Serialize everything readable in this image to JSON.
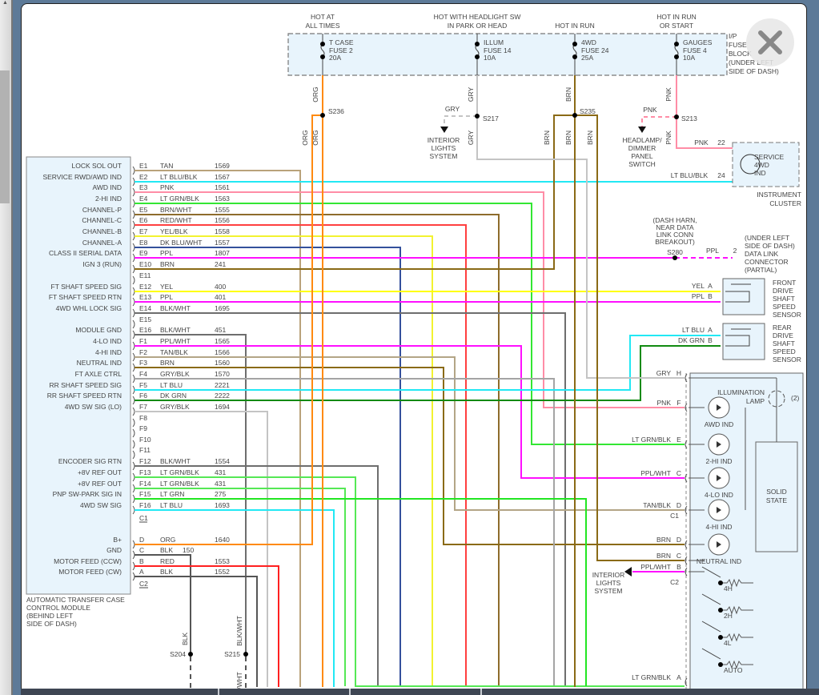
{
  "fuse_block": {
    "label": [
      "I/P",
      "FUSE",
      "BLOCK",
      "(UNDER LEFT",
      "SIDE OF DASH)"
    ],
    "fuses": [
      {
        "header": [
          "HOT AT",
          "ALL TIMES"
        ],
        "name": "T CASE",
        "fuse": "FUSE 2",
        "amps": "20A"
      },
      {
        "header": [
          "HOT WITH HEADLIGHT SW",
          "IN PARK OR HEAD"
        ],
        "name": "ILLUM",
        "fuse": "FUSE 14",
        "amps": "10A"
      },
      {
        "header": [
          "",
          "HOT IN RUN"
        ],
        "name": "4WD",
        "fuse": "FUSE 24",
        "amps": "25A"
      },
      {
        "header": [
          "HOT IN RUN",
          "OR START"
        ],
        "name": "GAUGES",
        "fuse": "FUSE 4",
        "amps": "10A"
      }
    ]
  },
  "splices": [
    "S236",
    "S217",
    "S235",
    "S213",
    "S280",
    "S204",
    "S215"
  ],
  "module": {
    "title": [
      "AUTOMATIC TRANSFER CASE",
      "CONTROL MODULE",
      "(BEHIND LEFT",
      "SIDE OF DASH)"
    ],
    "connector_labels": [
      "C1",
      "C2"
    ],
    "pins": [
      {
        "pin": "E1",
        "func": "LOCK SOL OUT",
        "color": "TAN",
        "circuit": "1569",
        "hex": "#b9a27a"
      },
      {
        "pin": "E2",
        "func": "SERVICE RWD/AWD IND",
        "color": "LT BLU/BLK",
        "circuit": "1567",
        "hex": "#22e8f4"
      },
      {
        "pin": "E3",
        "func": "AWD IND",
        "color": "PNK",
        "circuit": "1561",
        "hex": "#ff8da6"
      },
      {
        "pin": "E4",
        "func": "2-HI IND",
        "color": "LT GRN/BLK",
        "circuit": "1563",
        "hex": "#33e633"
      },
      {
        "pin": "E5",
        "func": "CHANNEL-P",
        "color": "BRN/WHT",
        "circuit": "1555",
        "hex": "#8e6c2c"
      },
      {
        "pin": "E6",
        "func": "CHANNEL-C",
        "color": "RED/WHT",
        "circuit": "1556",
        "hex": "#ff4040"
      },
      {
        "pin": "E7",
        "func": "CHANNEL-B",
        "color": "YEL/BLK",
        "circuit": "1558",
        "hex": "#f2f230"
      },
      {
        "pin": "E8",
        "func": "CHANNEL-A",
        "color": "DK BLU/WHT",
        "circuit": "1557",
        "hex": "#34509c"
      },
      {
        "pin": "E9",
        "func": "CLASS II SERIAL DATA",
        "color": "PPL",
        "circuit": "1807",
        "hex": "#ff10ff"
      },
      {
        "pin": "E10",
        "func": "IGN 3 (RUN)",
        "color": "BRN",
        "circuit": "241",
        "hex": "#8a6a16"
      },
      {
        "pin": "E11",
        "func": "",
        "color": "",
        "circuit": "",
        "hex": ""
      },
      {
        "pin": "E12",
        "func": "FT SHAFT SPEED SIG",
        "color": "YEL",
        "circuit": "400",
        "hex": "#ffff00"
      },
      {
        "pin": "E13",
        "func": "FT SHAFT SPEED RTN",
        "color": "PPL",
        "circuit": "401",
        "hex": "#ff10ff"
      },
      {
        "pin": "E14",
        "func": "4WD WHL LOCK SIG",
        "color": "BLK/WHT",
        "circuit": "1695",
        "hex": "#6e6e6e"
      },
      {
        "pin": "E15",
        "func": "",
        "color": "",
        "circuit": "",
        "hex": ""
      },
      {
        "pin": "E16",
        "func": "MODULE GND",
        "color": "BLK/WHT",
        "circuit": "451",
        "hex": "#6e6e6e"
      },
      {
        "pin": "F1",
        "func": "4-LO IND",
        "color": "PPL/WHT",
        "circuit": "1565",
        "hex": "#ff10ff"
      },
      {
        "pin": "F2",
        "func": "4-HI IND",
        "color": "TAN/BLK",
        "circuit": "1566",
        "hex": "#b3a586"
      },
      {
        "pin": "F3",
        "func": "NEUTRAL IND",
        "color": "BRN",
        "circuit": "1560",
        "hex": "#8a6a16"
      },
      {
        "pin": "F4",
        "func": "FT AXLE CTRL",
        "color": "GRY/BLK",
        "circuit": "1570",
        "hex": "#a4a4a4"
      },
      {
        "pin": "F5",
        "func": "RR SHAFT SPEED SIG",
        "color": "LT BLU",
        "circuit": "2221",
        "hex": "#22e8f4"
      },
      {
        "pin": "F6",
        "func": "RR SHAFT SPEED RTN",
        "color": "DK GRN",
        "circuit": "2222",
        "hex": "#118a11"
      },
      {
        "pin": "F7",
        "func": "4WD SW SIG (LO)",
        "color": "GRY/BLK",
        "circuit": "1694",
        "hex": "#c4c4c4"
      },
      {
        "pin": "F8",
        "func": "",
        "color": "",
        "circuit": "",
        "hex": ""
      },
      {
        "pin": "F9",
        "func": "",
        "color": "",
        "circuit": "",
        "hex": ""
      },
      {
        "pin": "F10",
        "func": "",
        "color": "",
        "circuit": "",
        "hex": ""
      },
      {
        "pin": "F11",
        "func": "",
        "color": "",
        "circuit": "",
        "hex": ""
      },
      {
        "pin": "F12",
        "func": "ENCODER SIG RTN",
        "color": "BLK/WHT",
        "circuit": "1554",
        "hex": "#6e6e6e"
      },
      {
        "pin": "F13",
        "func": "+8V REF OUT",
        "color": "LT GRN/BLK",
        "circuit": "431",
        "hex": "#55e855"
      },
      {
        "pin": "F14",
        "func": "+8V REF OUT",
        "color": "LT GRN/BLK",
        "circuit": "431",
        "hex": "#55e855"
      },
      {
        "pin": "F15",
        "func": "PNP SW-PARK SIG IN",
        "color": "LT GRN",
        "circuit": "275",
        "hex": "#22e622"
      },
      {
        "pin": "F16",
        "func": "4WD SW SIG",
        "color": "LT BLU",
        "circuit": "1693",
        "hex": "#22e8f4"
      },
      {
        "pin": "D",
        "func": "B+",
        "color": "ORG",
        "circuit": "1640",
        "hex": "#ff8a10"
      },
      {
        "pin": "C",
        "func": "GND",
        "color": "BLK",
        "circuit": "150",
        "hex": "#555555"
      },
      {
        "pin": "B",
        "func": "MOTOR FEED (CCW)",
        "color": "RED",
        "circuit": "1553",
        "hex": "#ff2020"
      },
      {
        "pin": "A",
        "func": "MOTOR FEED (CW)",
        "color": "BLK",
        "circuit": "1552",
        "hex": "#555555"
      }
    ]
  },
  "wire_labels": {
    "org": "ORG",
    "gry": "GRY",
    "brn": "BRN",
    "pnk": "PNK",
    "ppl": "PPL",
    "blk": "BLK",
    "blkwht": "BLK/WHT",
    "wht_partial": "/WHT",
    "cluster_22_color": "PNK",
    "cluster_22_pin": "22",
    "cluster_24_color": "LT BLU/BLK",
    "cluster_24_pin": "24",
    "dlc_pin": "2"
  },
  "destinations": {
    "interior_lights_top": [
      "INTERIOR",
      "LIGHTS",
      "SYSTEM"
    ],
    "headlamp_switch": [
      "HEADLAMP/",
      "DIMMER",
      "PANEL",
      "SWITCH"
    ],
    "interior_lights_bottom": [
      "INTERIOR",
      "LIGHTS",
      "SYSTEM"
    ]
  },
  "instrument_cluster": {
    "label": [
      "INSTRUMENT",
      "CLUSTER"
    ],
    "indicator": [
      "SERVICE",
      "4WD",
      "IND"
    ]
  },
  "dlc": {
    "splice_note": [
      "(DASH HARN,",
      "NEAR DATA",
      "LINK CONN",
      "BREAKOUT)"
    ],
    "label": [
      "(UNDER LEFT",
      "SIDE OF DASH)",
      "DATA LINK",
      "CONNECTOR",
      "(PARTIAL)"
    ]
  },
  "front_sensor": {
    "label": [
      "FRONT",
      "DRIVE",
      "SHAFT",
      "SPEED",
      "SENSOR"
    ],
    "pins": [
      {
        "color": "YEL",
        "pin": "A"
      },
      {
        "color": "PPL",
        "pin": "B"
      }
    ]
  },
  "rear_sensor": {
    "label": [
      "REAR",
      "DRIVE",
      "SHAFT",
      "SPEED",
      "SENSOR"
    ],
    "pins": [
      {
        "color": "LT BLU",
        "pin": "A"
      },
      {
        "color": "DK GRN",
        "pin": "B"
      }
    ]
  },
  "switch_module": {
    "pins": [
      {
        "color": "GRY",
        "pin": "H"
      },
      {
        "color": "PNK",
        "pin": "F"
      },
      {
        "color": "LT GRN/BLK",
        "pin": "E"
      },
      {
        "color": "PPL/WHT",
        "pin": "C"
      },
      {
        "color": "TAN/BLK",
        "pin": "D"
      },
      {
        "color": "BRN",
        "pin": "D"
      },
      {
        "color": "BRN",
        "pin": "C"
      },
      {
        "color": "PPL/WHT",
        "pin": "B"
      },
      {
        "color": "LT GRN/BLK",
        "pin": "A"
      }
    ],
    "connector_labels": [
      "C1",
      "C2"
    ],
    "lamp": [
      "ILLUMINATION",
      "LAMP"
    ],
    "lamp_count": "(2)",
    "leds": [
      "AWD IND",
      "2-HI IND",
      "4-LO IND",
      "4-HI IND",
      "NEUTRAL IND"
    ],
    "solid_state": [
      "SOLID",
      "STATE"
    ],
    "switch_positions": [
      "4H",
      "2H",
      "4L",
      "AUTO"
    ]
  },
  "ui": {
    "close_icon": "close-x"
  }
}
